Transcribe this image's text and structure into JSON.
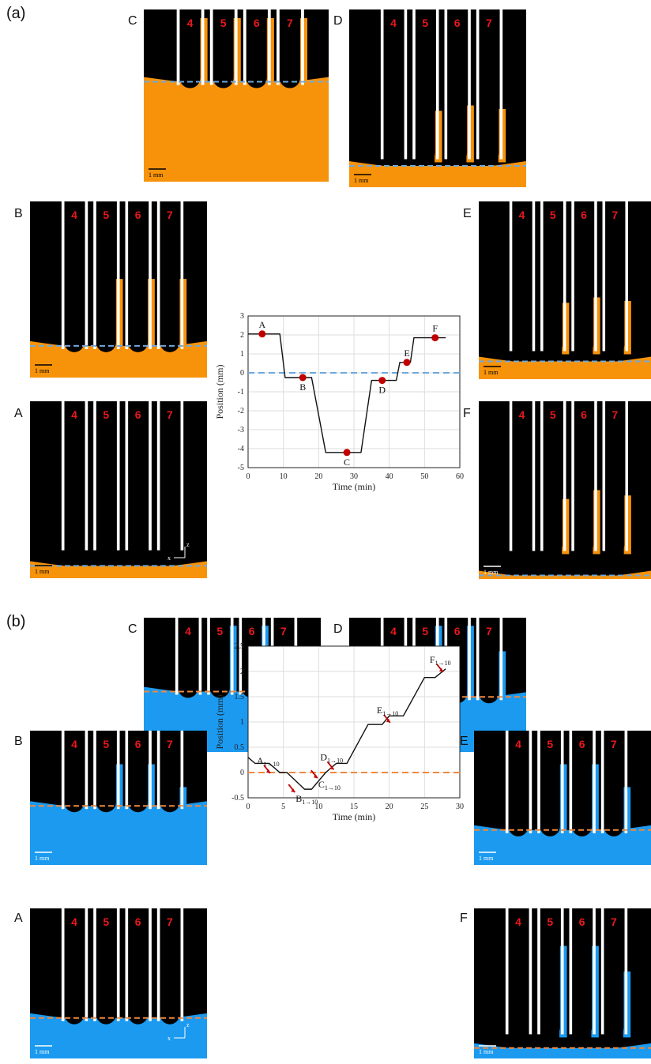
{
  "section_labels": {
    "a": "(a)",
    "b": "(b)"
  },
  "tube_labels": [
    "4",
    "5",
    "6",
    "7"
  ],
  "scale_bar_text": "1 mm",
  "axis_indicator": {
    "z": "z",
    "x": "x"
  },
  "colors": {
    "fluid_a": "#f7930b",
    "fluid_b": "#1b9af0",
    "ref_line_a": "#6fa8dc",
    "ref_line_b": "#f0883e",
    "marker": "#c00000",
    "background": "#000000"
  },
  "section_a": {
    "panels": [
      {
        "id": "C",
        "label": "C",
        "ref_level": 0.42,
        "fluid_tops": [
          0.05,
          0.05,
          0.05,
          0.05
        ]
      },
      {
        "id": "D",
        "label": "D",
        "ref_level": 0.88,
        "fluid_tops": [
          1.0,
          0.57,
          0.54,
          0.56
        ]
      },
      {
        "id": "B",
        "label": "B",
        "ref_level": 0.82,
        "fluid_tops": [
          1.0,
          0.44,
          0.44,
          0.44
        ]
      },
      {
        "id": "E",
        "label": "E",
        "ref_level": 0.9,
        "fluid_tops": [
          1.0,
          0.57,
          0.54,
          0.56
        ]
      },
      {
        "id": "A",
        "label": "A",
        "ref_level": 0.93,
        "fluid_tops": [
          1.0,
          1.0,
          1.0,
          1.0
        ]
      },
      {
        "id": "F",
        "label": "F",
        "ref_level": 0.98,
        "fluid_tops": [
          1.0,
          0.55,
          0.5,
          0.53
        ]
      }
    ]
  },
  "section_b": {
    "panels": [
      {
        "id": "C",
        "label": "C",
        "ref_level": 0.55,
        "fluid_tops": [
          1.0,
          0.06,
          0.06,
          0.25
        ]
      },
      {
        "id": "D",
        "label": "D",
        "ref_level": 0.59,
        "fluid_tops": [
          1.0,
          0.06,
          0.06,
          0.25
        ]
      },
      {
        "id": "B",
        "label": "B",
        "ref_level": 0.56,
        "fluid_tops": [
          1.0,
          0.25,
          0.25,
          0.42
        ]
      },
      {
        "id": "E",
        "label": "E",
        "ref_level": 0.74,
        "fluid_tops": [
          1.0,
          0.25,
          0.25,
          0.42
        ]
      },
      {
        "id": "A",
        "label": "A",
        "ref_level": 0.73,
        "fluid_tops": [
          1.0,
          1.0,
          1.0,
          1.0
        ]
      },
      {
        "id": "F",
        "label": "F",
        "ref_level": 0.93,
        "fluid_tops": [
          1.0,
          0.25,
          0.25,
          0.42
        ]
      }
    ]
  },
  "chart_data": [
    {
      "type": "line",
      "xlabel": "Time (min)",
      "ylabel": "Position (mm)",
      "xlim": [
        0,
        60
      ],
      "ylim": [
        -5,
        3
      ],
      "xticks": [
        "0",
        "10",
        "20",
        "30",
        "40",
        "50",
        "60"
      ],
      "yticks": [
        "3",
        "2",
        "1",
        "0",
        "-1",
        "-2",
        "-3",
        "-4",
        "-5"
      ],
      "grid": true,
      "reference_line_y": 0,
      "series": [
        {
          "x": [
            0,
            9,
            10.5,
            18,
            22,
            32,
            35,
            40,
            42,
            43,
            46,
            47,
            48,
            56
          ],
          "y": [
            2.05,
            2.05,
            -0.25,
            -0.25,
            -4.2,
            -4.2,
            -0.4,
            -0.4,
            -0.4,
            0.55,
            0.55,
            1.85,
            1.85,
            1.85
          ]
        }
      ],
      "annotations": [
        {
          "label": "A",
          "x": 4,
          "y": 2.05
        },
        {
          "label": "B",
          "x": 15.5,
          "y": -0.25
        },
        {
          "label": "C",
          "x": 28,
          "y": -4.2
        },
        {
          "label": "D",
          "x": 38,
          "y": -0.4
        },
        {
          "label": "E",
          "x": 45,
          "y": 0.55
        },
        {
          "label": "F",
          "x": 53,
          "y": 1.85
        }
      ]
    },
    {
      "type": "line",
      "xlabel": "Time (min)",
      "ylabel": "Position (mm)",
      "xlim": [
        0,
        30
      ],
      "ylim": [
        -0.5,
        2.5
      ],
      "xticks": [
        "0",
        "5",
        "10",
        "15",
        "20",
        "25",
        "30"
      ],
      "yticks": [
        "2.5",
        "2",
        "1.5",
        "1",
        "0.5",
        "0",
        "-0.5"
      ],
      "grid": true,
      "reference_line_y": 0,
      "series": [
        {
          "x": [
            0,
            1,
            3,
            4.5,
            5.5,
            8,
            9,
            11,
            12.5,
            14,
            17,
            19,
            20,
            22,
            25,
            26.5,
            28
          ],
          "y": [
            0.3,
            0.18,
            0.18,
            0.0,
            0.0,
            -0.33,
            -0.33,
            0.0,
            0.18,
            0.18,
            0.95,
            0.95,
            1.12,
            1.12,
            1.88,
            1.88,
            2.05
          ]
        }
      ],
      "annotations": [
        {
          "label": "A",
          "sub": "1→10",
          "x": 2.8,
          "y": 0.05
        },
        {
          "label": "B",
          "sub": "1→10",
          "x": 6.3,
          "y": -0.33
        },
        {
          "label": "C",
          "sub": "1→10",
          "x": 9.5,
          "y": -0.05
        },
        {
          "label": "D",
          "sub": "1→10",
          "x": 11.8,
          "y": 0.12
        },
        {
          "label": "E",
          "sub": "1→10",
          "x": 19.8,
          "y": 1.05
        },
        {
          "label": "F",
          "sub": "1→10",
          "x": 27.3,
          "y": 2.05
        }
      ]
    }
  ]
}
